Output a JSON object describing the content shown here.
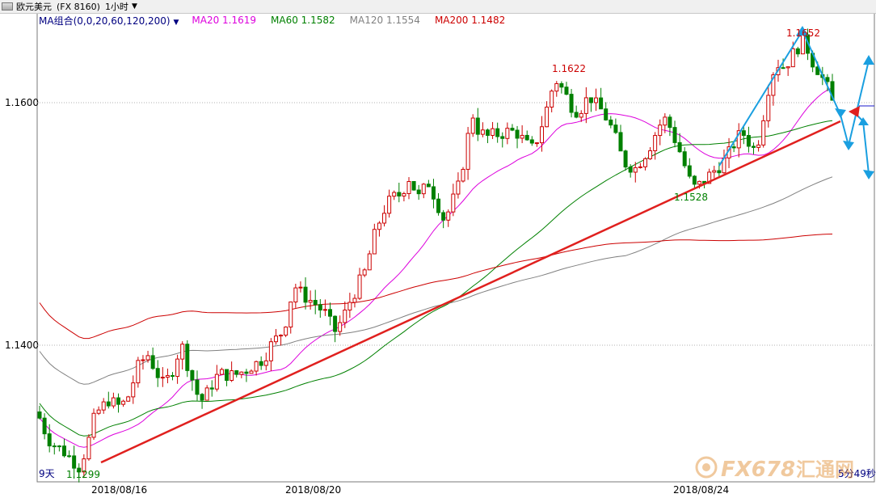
{
  "window": {
    "title": "欧元美元",
    "code": "(FX 8160)",
    "period": "1小时"
  },
  "legend": {
    "ma_group": "MA组合(0,0,20,60,120,200)",
    "ma20": "MA20 1.1619",
    "ma60": "MA60 1.1582",
    "ma120": "MA120 1.1554",
    "ma200": "MA200 1.1482"
  },
  "footer": {
    "left_text": "9天",
    "right_text": "5分49秒"
  },
  "watermark": {
    "text": "FX678",
    "subtext": "汇通网"
  },
  "chart_data": {
    "type": "candlestick",
    "title": "",
    "xlabel": "",
    "ylabel": "",
    "y_tick_labels": [
      "1.1600",
      "1.1400"
    ],
    "x_tick_labels": [
      "2018/08/16",
      "2018/08/20",
      "2018/08/24"
    ],
    "ylim": [
      1.1282,
      1.1672
    ],
    "annotations": [
      {
        "label": "1.1622",
        "value": 1.1622,
        "color": "#cc0000"
      },
      {
        "label": "1.1652",
        "value": 1.1652,
        "color": "#cc0000"
      },
      {
        "label": "1.1528",
        "value": 1.1528,
        "color": "#008000"
      },
      {
        "label": "1.1299",
        "value": 1.1299,
        "color": "#008000"
      }
    ],
    "moving_averages": [
      {
        "name": "MA20",
        "last": 1.1619,
        "color": "#dd00dd"
      },
      {
        "name": "MA60",
        "last": 1.1582,
        "color": "#008000"
      },
      {
        "name": "MA120",
        "last": 1.1554,
        "color": "#808080"
      },
      {
        "name": "MA200",
        "last": 1.1482,
        "color": "#cc0000"
      }
    ],
    "candle_colors": {
      "up": "#cc0000",
      "down": "#008000"
    },
    "close_path": [
      1.134,
      1.133,
      1.1322,
      1.1318,
      1.1315,
      1.1312,
      1.1308,
      1.1304,
      1.13,
      1.131,
      1.1322,
      1.1338,
      1.1346,
      1.135,
      1.1355,
      1.1352,
      1.135,
      1.1352,
      1.1358,
      1.137,
      1.1382,
      1.1388,
      1.1392,
      1.1384,
      1.1376,
      1.1368,
      1.1372,
      1.138,
      1.1392,
      1.1398,
      1.1385,
      1.1372,
      1.136,
      1.1355,
      1.136,
      1.1368,
      1.1374,
      1.1376,
      1.1376,
      1.1375,
      1.1376,
      1.1378,
      1.138,
      1.1383,
      1.1385,
      1.1388,
      1.1393,
      1.14,
      1.1405,
      1.141,
      1.142,
      1.1438,
      1.1448,
      1.1443,
      1.144,
      1.1437,
      1.1434,
      1.143,
      1.1426,
      1.1418,
      1.1412,
      1.1418,
      1.1426,
      1.1436,
      1.1444,
      1.1452,
      1.146,
      1.1475,
      1.149,
      1.1502,
      1.1512,
      1.1518,
      1.1522,
      1.1524,
      1.153,
      1.1538,
      1.153,
      1.1522,
      1.1528,
      1.1534,
      1.1525,
      1.1515,
      1.1505,
      1.151,
      1.152,
      1.153,
      1.155,
      1.1572,
      1.159,
      1.1578,
      1.1574,
      1.1572,
      1.1573,
      1.1574,
      1.1575,
      1.1576,
      1.1576,
      1.1575,
      1.157,
      1.1565,
      1.1562,
      1.157,
      1.1582,
      1.1595,
      1.161,
      1.1618,
      1.1612,
      1.1605,
      1.1598,
      1.1594,
      1.1596,
      1.1602,
      1.1604,
      1.1598,
      1.1594,
      1.1588,
      1.158,
      1.157,
      1.1558,
      1.155,
      1.1548,
      1.1546,
      1.1552,
      1.1558,
      1.1565,
      1.1574,
      1.1582,
      1.1586,
      1.158,
      1.157,
      1.156,
      1.1548,
      1.1536,
      1.153,
      1.1532,
      1.1536,
      1.154,
      1.1544,
      1.1548,
      1.1552,
      1.1558,
      1.1566,
      1.1572,
      1.1574,
      1.1568,
      1.1562,
      1.157,
      1.159,
      1.1612,
      1.1626,
      1.1632,
      1.163,
      1.1634,
      1.164,
      1.1646,
      1.165,
      1.1644,
      1.1634,
      1.1628,
      1.162,
      1.1612,
      1.16
    ],
    "last_price": 1.1595
  }
}
